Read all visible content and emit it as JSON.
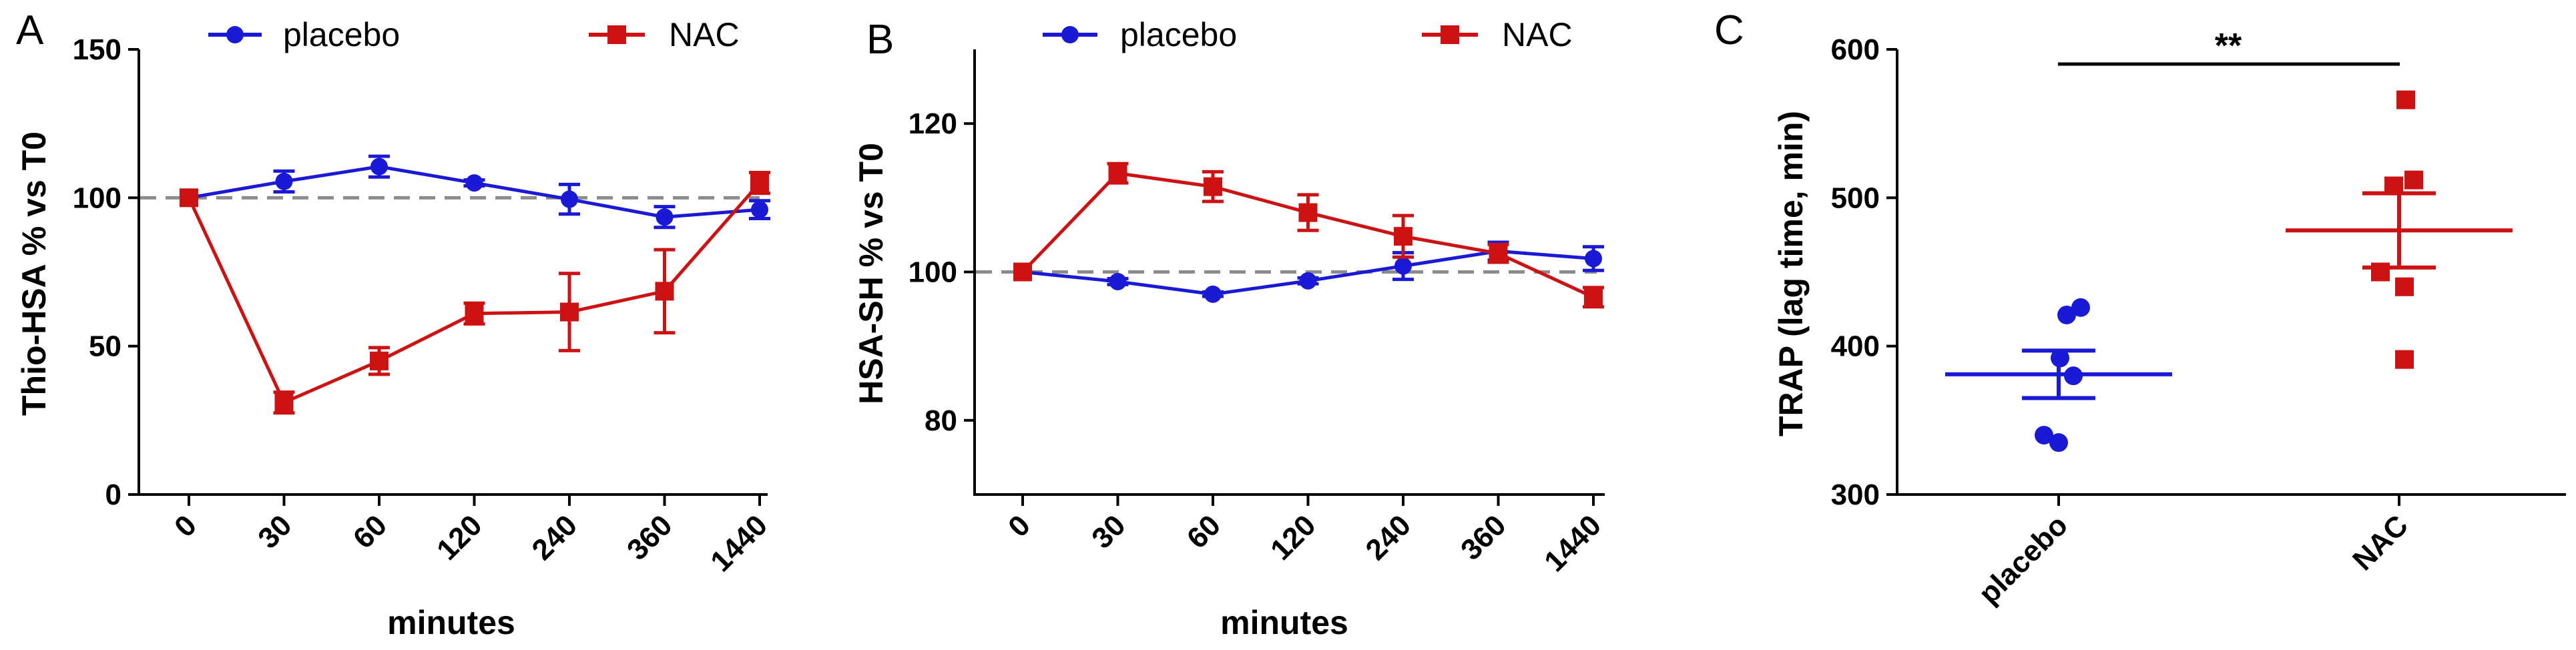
{
  "colors": {
    "placebo": "#1a1ad6",
    "nac": "#cc1212",
    "reference": "#8c8c8c",
    "axis": "#000000"
  },
  "chart_data": [
    {
      "type": "line",
      "panel": "A",
      "ylabel": "Thio-HSA % vs T0",
      "xlabel": "minutes",
      "categories": [
        "0",
        "30",
        "60",
        "120",
        "240",
        "360",
        "1440"
      ],
      "ylim": [
        0,
        150
      ],
      "yticks": [
        "0",
        "50",
        "100",
        "150"
      ],
      "reference_line": 100,
      "legend": [
        "placebo",
        "NAC"
      ],
      "series": [
        {
          "name": "placebo",
          "values": [
            100,
            105.5,
            110.5,
            105,
            99.5,
            93.5,
            96
          ],
          "errors": [
            0,
            3.5,
            3.5,
            1,
            5,
            3.5,
            3
          ]
        },
        {
          "name": "NAC",
          "values": [
            100,
            31,
            45,
            61,
            61.5,
            68.5,
            105
          ],
          "errors": [
            0,
            3.5,
            4.5,
            3.5,
            13,
            14,
            3.5
          ]
        }
      ]
    },
    {
      "type": "line",
      "panel": "B",
      "ylabel": "HSA-SH % vs T0",
      "xlabel": "minutes",
      "categories": [
        "0",
        "30",
        "60",
        "120",
        "240",
        "360",
        "1440"
      ],
      "ylim": [
        70,
        130
      ],
      "yticks": [
        "80",
        "100",
        "120"
      ],
      "reference_line": 100,
      "legend": [
        "placebo",
        "NAC"
      ],
      "series": [
        {
          "name": "placebo",
          "values": [
            100,
            98.7,
            97,
            98.8,
            100.8,
            102.8,
            101.8
          ],
          "errors": [
            0,
            0.4,
            0.3,
            0.4,
            1.8,
            1.2,
            1.6
          ]
        },
        {
          "name": "NAC",
          "values": [
            100,
            113.3,
            111.5,
            108,
            104.8,
            102.5,
            96.6
          ],
          "errors": [
            0,
            1.3,
            2,
            2.4,
            2.8,
            1.2,
            1.3
          ]
        }
      ]
    },
    {
      "type": "scatter",
      "panel": "C",
      "ylabel": "TRAP (lag time, min)",
      "categories": [
        "placebo",
        "NAC"
      ],
      "ylim": [
        300,
        600
      ],
      "yticks": [
        "300",
        "400",
        "500",
        "600"
      ],
      "significance": "**",
      "series": [
        {
          "name": "placebo",
          "points": [
            421,
            426,
            392,
            380,
            340,
            335
          ],
          "mean": 381,
          "sem": 16
        },
        {
          "name": "NAC",
          "points": [
            566,
            512,
            508,
            450,
            440,
            391
          ],
          "mean": 478,
          "sem": 25
        }
      ]
    }
  ]
}
